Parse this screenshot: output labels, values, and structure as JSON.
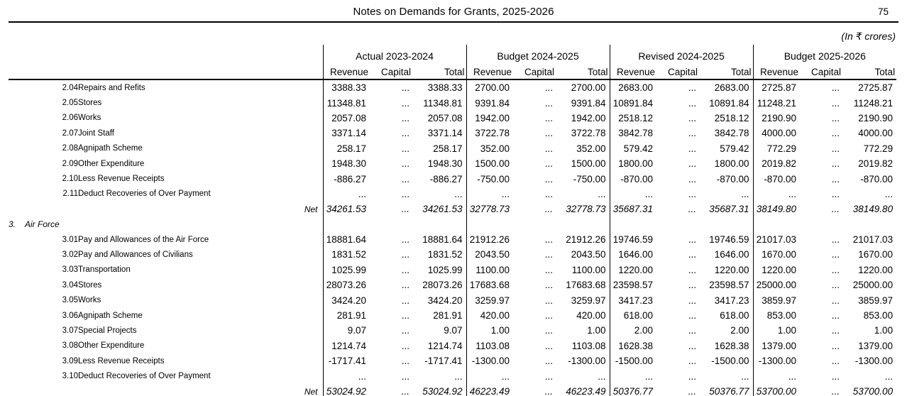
{
  "page": {
    "title": "Notes on Demands for Grants, 2025-2026",
    "page_number": "75",
    "unit_note": "(In ₹ crores)"
  },
  "table": {
    "groups": [
      "Actual 2023-2024",
      "Budget 2024-2025",
      "Revised 2024-2025",
      "Budget 2025-2026"
    ],
    "sub_columns": [
      "Revenue",
      "Capital",
      "Total"
    ],
    "rows": [
      {
        "type": "item",
        "code": "2.04",
        "label": "Repairs and Refits",
        "values": [
          [
            "3388.33",
            "...",
            "3388.33"
          ],
          [
            "2700.00",
            "...",
            "2700.00"
          ],
          [
            "2683.00",
            "...",
            "2683.00"
          ],
          [
            "2725.87",
            "...",
            "2725.87"
          ]
        ]
      },
      {
        "type": "item",
        "code": "2.05",
        "label": "Stores",
        "values": [
          [
            "11348.81",
            "...",
            "11348.81"
          ],
          [
            "9391.84",
            "...",
            "9391.84"
          ],
          [
            "10891.84",
            "...",
            "10891.84"
          ],
          [
            "11248.21",
            "...",
            "11248.21"
          ]
        ]
      },
      {
        "type": "item",
        "code": "2.06",
        "label": "Works",
        "values": [
          [
            "2057.08",
            "...",
            "2057.08"
          ],
          [
            "1942.00",
            "...",
            "1942.00"
          ],
          [
            "2518.12",
            "...",
            "2518.12"
          ],
          [
            "2190.90",
            "...",
            "2190.90"
          ]
        ]
      },
      {
        "type": "item",
        "code": "2.07",
        "label": "Joint Staff",
        "values": [
          [
            "3371.14",
            "...",
            "3371.14"
          ],
          [
            "3722.78",
            "...",
            "3722.78"
          ],
          [
            "3842.78",
            "...",
            "3842.78"
          ],
          [
            "4000.00",
            "...",
            "4000.00"
          ]
        ]
      },
      {
        "type": "item",
        "code": "2.08",
        "label": "Agnipath Scheme",
        "values": [
          [
            "258.17",
            "...",
            "258.17"
          ],
          [
            "352.00",
            "...",
            "352.00"
          ],
          [
            "579.42",
            "...",
            "579.42"
          ],
          [
            "772.29",
            "...",
            "772.29"
          ]
        ]
      },
      {
        "type": "item",
        "code": "2.09",
        "label": "Other Expenditure",
        "values": [
          [
            "1948.30",
            "...",
            "1948.30"
          ],
          [
            "1500.00",
            "...",
            "1500.00"
          ],
          [
            "1800.00",
            "...",
            "1800.00"
          ],
          [
            "2019.82",
            "...",
            "2019.82"
          ]
        ]
      },
      {
        "type": "item",
        "code": "2.10",
        "label": "Less Revenue Receipts",
        "values": [
          [
            "-886.27",
            "...",
            "-886.27"
          ],
          [
            "-750.00",
            "...",
            "-750.00"
          ],
          [
            "-870.00",
            "...",
            "-870.00"
          ],
          [
            "-870.00",
            "...",
            "-870.00"
          ]
        ]
      },
      {
        "type": "item",
        "code": "2.11",
        "label": "Deduct Recoveries of Over Payment",
        "values": [
          [
            "...",
            "...",
            "..."
          ],
          [
            "...",
            "...",
            "..."
          ],
          [
            "...",
            "...",
            "..."
          ],
          [
            "...",
            "...",
            "..."
          ]
        ]
      },
      {
        "type": "net",
        "label": "Net",
        "values": [
          [
            "34261.53",
            "...",
            "34261.53"
          ],
          [
            "32778.73",
            "...",
            "32778.73"
          ],
          [
            "35687.31",
            "...",
            "35687.31"
          ],
          [
            "38149.80",
            "...",
            "38149.80"
          ]
        ]
      },
      {
        "type": "section",
        "code": "3.",
        "label": "Air Force"
      },
      {
        "type": "item",
        "code": "3.01",
        "label": "Pay and Allowances of the Air Force",
        "values": [
          [
            "18881.64",
            "...",
            "18881.64"
          ],
          [
            "21912.26",
            "...",
            "21912.26"
          ],
          [
            "19746.59",
            "...",
            "19746.59"
          ],
          [
            "21017.03",
            "...",
            "21017.03"
          ]
        ]
      },
      {
        "type": "item",
        "code": "3.02",
        "label": "Pay and Allowances of Civilians",
        "values": [
          [
            "1831.52",
            "...",
            "1831.52"
          ],
          [
            "2043.50",
            "...",
            "2043.50"
          ],
          [
            "1646.00",
            "...",
            "1646.00"
          ],
          [
            "1670.00",
            "...",
            "1670.00"
          ]
        ]
      },
      {
        "type": "item",
        "code": "3.03",
        "label": "Transportation",
        "values": [
          [
            "1025.99",
            "...",
            "1025.99"
          ],
          [
            "1100.00",
            "...",
            "1100.00"
          ],
          [
            "1220.00",
            "...",
            "1220.00"
          ],
          [
            "1220.00",
            "...",
            "1220.00"
          ]
        ]
      },
      {
        "type": "item",
        "code": "3.04",
        "label": "Stores",
        "values": [
          [
            "28073.26",
            "...",
            "28073.26"
          ],
          [
            "17683.68",
            "...",
            "17683.68"
          ],
          [
            "23598.57",
            "...",
            "23598.57"
          ],
          [
            "25000.00",
            "...",
            "25000.00"
          ]
        ]
      },
      {
        "type": "item",
        "code": "3.05",
        "label": "Works",
        "values": [
          [
            "3424.20",
            "...",
            "3424.20"
          ],
          [
            "3259.97",
            "...",
            "3259.97"
          ],
          [
            "3417.23",
            "...",
            "3417.23"
          ],
          [
            "3859.97",
            "...",
            "3859.97"
          ]
        ]
      },
      {
        "type": "item",
        "code": "3.06",
        "label": "Agnipath Scheme",
        "values": [
          [
            "281.91",
            "...",
            "281.91"
          ],
          [
            "420.00",
            "...",
            "420.00"
          ],
          [
            "618.00",
            "...",
            "618.00"
          ],
          [
            "853.00",
            "...",
            "853.00"
          ]
        ]
      },
      {
        "type": "item",
        "code": "3.07",
        "label": "Special Projects",
        "values": [
          [
            "9.07",
            "...",
            "9.07"
          ],
          [
            "1.00",
            "...",
            "1.00"
          ],
          [
            "2.00",
            "...",
            "2.00"
          ],
          [
            "1.00",
            "...",
            "1.00"
          ]
        ]
      },
      {
        "type": "item",
        "code": "3.08",
        "label": "Other Expenditure",
        "values": [
          [
            "1214.74",
            "...",
            "1214.74"
          ],
          [
            "1103.08",
            "...",
            "1103.08"
          ],
          [
            "1628.38",
            "...",
            "1628.38"
          ],
          [
            "1379.00",
            "...",
            "1379.00"
          ]
        ]
      },
      {
        "type": "item",
        "code": "3.09",
        "label": "Less Revenue Receipts",
        "values": [
          [
            "-1717.41",
            "...",
            "-1717.41"
          ],
          [
            "-1300.00",
            "...",
            "-1300.00"
          ],
          [
            "-1500.00",
            "...",
            "-1500.00"
          ],
          [
            "-1300.00",
            "...",
            "-1300.00"
          ]
        ]
      },
      {
        "type": "item",
        "code": "3.10",
        "label": "Deduct Recoveries of Over Payment",
        "values": [
          [
            "...",
            "...",
            "..."
          ],
          [
            "...",
            "...",
            "..."
          ],
          [
            "...",
            "...",
            "..."
          ],
          [
            "...",
            "...",
            "..."
          ]
        ]
      },
      {
        "type": "net",
        "label": "Net",
        "values": [
          [
            "53024.92",
            "...",
            "53024.92"
          ],
          [
            "46223.49",
            "...",
            "46223.49"
          ],
          [
            "50376.77",
            "...",
            "50376.77"
          ],
          [
            "53700.00",
            "...",
            "53700.00"
          ]
        ]
      }
    ]
  }
}
